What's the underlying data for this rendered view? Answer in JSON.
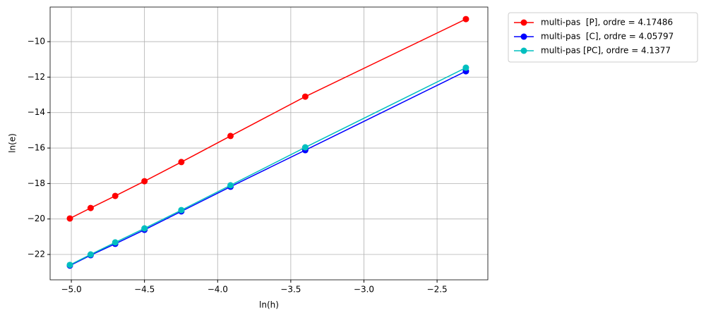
{
  "chart_data": {
    "type": "line",
    "xlabel": "ln(h)",
    "ylabel": "ln(e)",
    "x": [
      -5.01,
      -4.868,
      -4.7,
      -4.5,
      -4.248,
      -3.912,
      -3.401,
      -2.303
    ],
    "series": [
      {
        "name": "multi-pas  [P], ordre = 4.17486",
        "color": "#ff0000",
        "values": [
          -19.97,
          -19.38,
          -18.7,
          -17.87,
          -16.79,
          -15.32,
          -13.1,
          -8.73
        ]
      },
      {
        "name": "multi-pas  [C], ordre = 4.05797",
        "color": "#0000ff",
        "values": [
          -22.63,
          -22.04,
          -21.4,
          -20.61,
          -19.57,
          -18.18,
          -16.12,
          -11.67
        ]
      },
      {
        "name": "multi-pas [PC], ordre = 4.1377",
        "color": "#00bfbf",
        "values": [
          -22.59,
          -22.0,
          -21.32,
          -20.53,
          -19.5,
          -18.1,
          -15.96,
          -11.47
        ]
      }
    ],
    "xlim": [
      -5.145,
      -2.153
    ],
    "ylim": [
      -23.43,
      -8.05
    ],
    "xticks": [
      {
        "value": -5.0,
        "label": "−5.0"
      },
      {
        "value": -4.5,
        "label": "−4.5"
      },
      {
        "value": -4.0,
        "label": "−4.0"
      },
      {
        "value": -3.5,
        "label": "−3.5"
      },
      {
        "value": -3.0,
        "label": "−3.0"
      },
      {
        "value": -2.5,
        "label": "−2.5"
      }
    ],
    "yticks": [
      {
        "value": -22,
        "label": "−22"
      },
      {
        "value": -20,
        "label": "−20"
      },
      {
        "value": -18,
        "label": "−18"
      },
      {
        "value": -16,
        "label": "−16"
      },
      {
        "value": -14,
        "label": "−14"
      },
      {
        "value": -12,
        "label": "−12"
      },
      {
        "value": -10,
        "label": "−10"
      }
    ],
    "grid": true,
    "legend": "outside upper right"
  }
}
